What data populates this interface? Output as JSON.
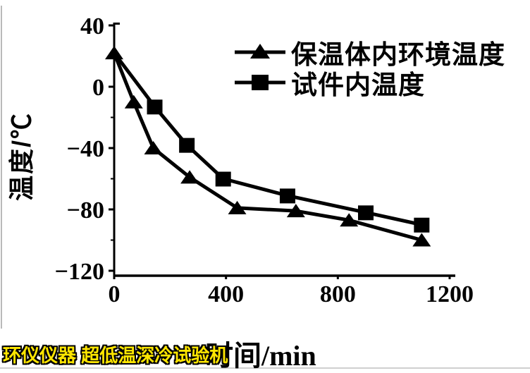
{
  "watermark": {
    "text": "环仪仪器 超低温深冷试验机",
    "color": "#ffe600"
  },
  "chart_data": {
    "type": "line",
    "title": "",
    "xlabel": "时间/min",
    "ylabel": "温度/℃",
    "xlim": [
      0,
      1280
    ],
    "ylim": [
      -120,
      40
    ],
    "x_ticks": [
      0,
      400,
      800,
      1200
    ],
    "y_ticks": [
      40,
      0,
      -40,
      -80,
      -120
    ],
    "grid": false,
    "legend_position": "upper right inside",
    "line_color": "#000000",
    "series": [
      {
        "name": "保温体内环境温度",
        "marker": "triangle",
        "x": [
          0,
          70,
          140,
          270,
          440,
          650,
          840,
          1100
        ],
        "y": [
          22,
          -10,
          -40,
          -59,
          -79,
          -81,
          -87,
          -100
        ]
      },
      {
        "name": "试件内温度",
        "marker": "square",
        "x": [
          0,
          145,
          260,
          390,
          620,
          900,
          1100
        ],
        "y": [
          22,
          -13,
          -38,
          -60,
          -71,
          -82,
          -90
        ]
      }
    ]
  }
}
